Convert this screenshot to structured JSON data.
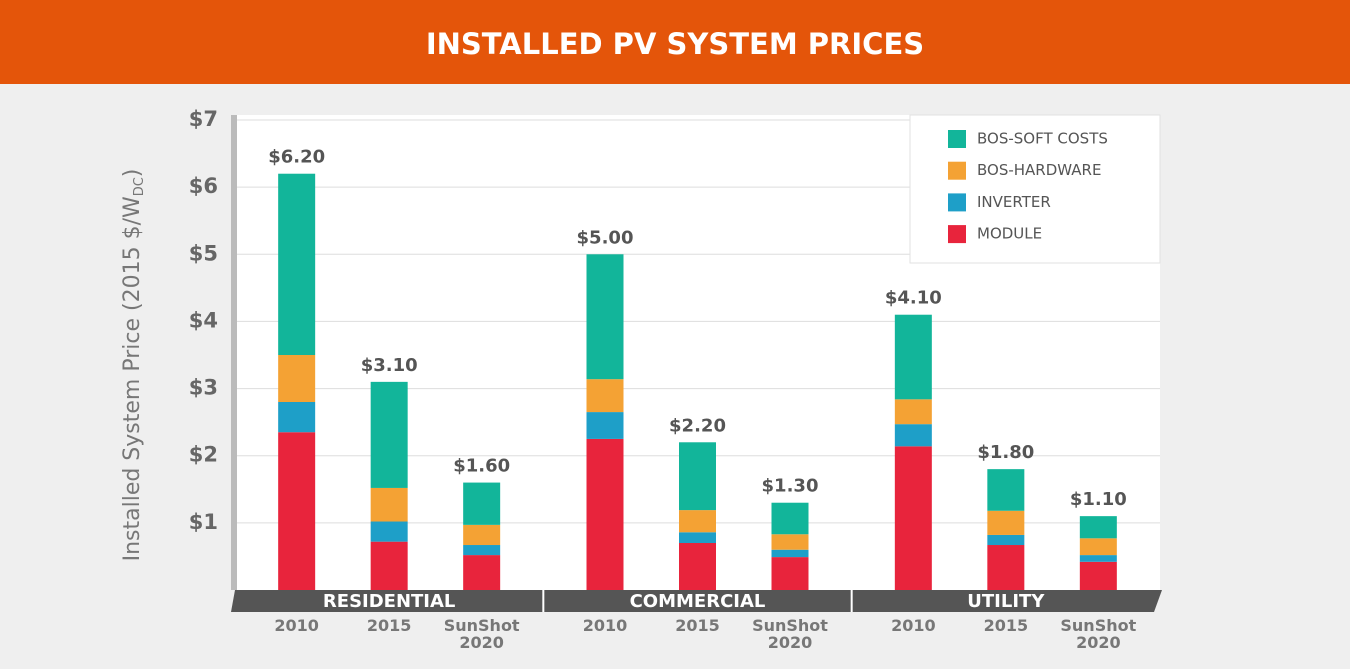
{
  "chart_data": {
    "type": "stacked-bar",
    "title": "INSTALLED PV SYSTEM PRICES",
    "y_label": [
      "Installed System Price (2015 $/W",
      "DC",
      ")"
    ],
    "groups": [
      "RESIDENTIAL",
      "COMMERCIAL",
      "UTILITY"
    ],
    "categories": [
      "2010",
      "2015",
      "SunShot 2020",
      "2010",
      "2015",
      "SunShot 2020",
      "2010",
      "2015",
      "SunShot 2020"
    ],
    "series": [
      {
        "name": "MODULE",
        "color": "#e8243c",
        "values": [
          2.35,
          0.72,
          0.52,
          2.25,
          0.7,
          0.49,
          2.14,
          0.67,
          0.42
        ]
      },
      {
        "name": "INVERTER",
        "color": "#1e9fc8",
        "values": [
          0.45,
          0.3,
          0.15,
          0.4,
          0.16,
          0.11,
          0.33,
          0.15,
          0.1
        ]
      },
      {
        "name": "BOS-HARDWARE",
        "color": "#f4a234",
        "values": [
          0.7,
          0.5,
          0.3,
          0.49,
          0.33,
          0.23,
          0.37,
          0.36,
          0.25
        ]
      },
      {
        "name": "BOS-SOFT COSTS",
        "color": "#12b59a",
        "values": [
          2.7,
          1.58,
          0.63,
          1.86,
          1.01,
          0.47,
          1.26,
          0.62,
          0.33
        ]
      }
    ],
    "totals": [
      6.2,
      3.1,
      1.6,
      5.0,
      2.2,
      1.3,
      4.1,
      1.8,
      1.1
    ],
    "total_labels": [
      "$6.20",
      "$3.10",
      "$1.60",
      "$5.00",
      "$2.20",
      "$1.30",
      "$4.10",
      "$1.80",
      "$1.10"
    ],
    "ylim": [
      0,
      7
    ],
    "yticks": [
      {
        "value": 1,
        "label": "$1"
      },
      {
        "value": 2,
        "label": "$2"
      },
      {
        "value": 3,
        "label": "$3"
      },
      {
        "value": 4,
        "label": "$4"
      },
      {
        "value": 5,
        "label": "$5"
      },
      {
        "value": 6,
        "label": "$6"
      },
      {
        "value": 7,
        "label": "$7"
      }
    ],
    "grid": true,
    "legend": "top-right"
  }
}
